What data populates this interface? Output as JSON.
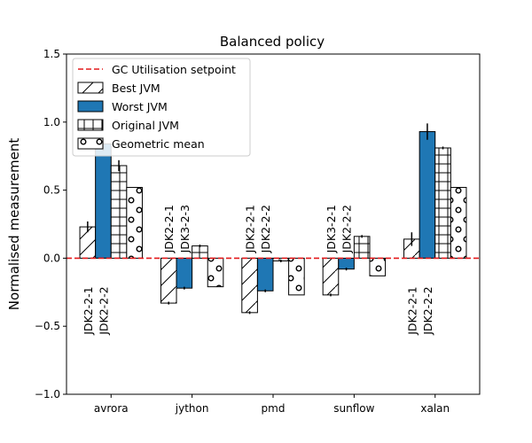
{
  "chart_data": {
    "type": "bar",
    "title": "Balanced policy",
    "xlabel": "",
    "ylabel": "Normalised measurement",
    "ylim": [
      -1.0,
      1.5
    ],
    "yticks": [
      -1.0,
      -0.5,
      0.0,
      0.5,
      1.0,
      1.5
    ],
    "ytick_labels": [
      "−1.0",
      "−0.5",
      "0.0",
      "0.5",
      "1.0",
      "1.5"
    ],
    "categories": [
      "avrora",
      "jython",
      "pmd",
      "sunflow",
      "xalan"
    ],
    "setpoint": {
      "name": "GC Utilisation setpoint",
      "value": 0.0,
      "color": "#e41a1c"
    },
    "series": [
      {
        "name": "Best JVM",
        "pattern": "diagonal",
        "color": "#ffffff",
        "values": [
          0.23,
          -0.33,
          -0.4,
          -0.27,
          0.14
        ],
        "errors": [
          0.04,
          0.01,
          0.01,
          0.01,
          0.05
        ]
      },
      {
        "name": "Worst JVM",
        "pattern": "solid",
        "color": "#1f77b4",
        "values": [
          0.84,
          -0.22,
          -0.24,
          -0.08,
          0.93
        ],
        "errors": [
          0.05,
          0.01,
          0.01,
          0.01,
          0.06
        ]
      },
      {
        "name": "Original JVM",
        "pattern": "grid",
        "color": "#ffffff",
        "values": [
          0.68,
          0.09,
          -0.02,
          0.16,
          0.81
        ],
        "errors": [
          0.04,
          0.01,
          0.01,
          0.01,
          0.01
        ]
      },
      {
        "name": "Geometric mean",
        "pattern": "circles",
        "color": "#ffffff",
        "values": [
          0.52,
          -0.21,
          -0.27,
          -0.13,
          0.52
        ],
        "errors": [
          0,
          0,
          0,
          0,
          0
        ]
      }
    ],
    "annotations": [
      {
        "category": "avrora",
        "labels": [
          "JDK2-2-1",
          "JDK2-2-2"
        ],
        "side": "below"
      },
      {
        "category": "jython",
        "labels": [
          "JDK2-2-1",
          "JDK3-2-3"
        ],
        "side": "above"
      },
      {
        "category": "pmd",
        "labels": [
          "JDK2-2-1",
          "JDK2-2-2"
        ],
        "side": "above"
      },
      {
        "category": "sunflow",
        "labels": [
          "JDK3-2-1",
          "JDK2-2-2"
        ],
        "side": "above"
      },
      {
        "category": "xalan",
        "labels": [
          "JDK2-2-1",
          "JDK2-2-2"
        ],
        "side": "below"
      }
    ],
    "legend_position": "top-left",
    "grid": false
  }
}
